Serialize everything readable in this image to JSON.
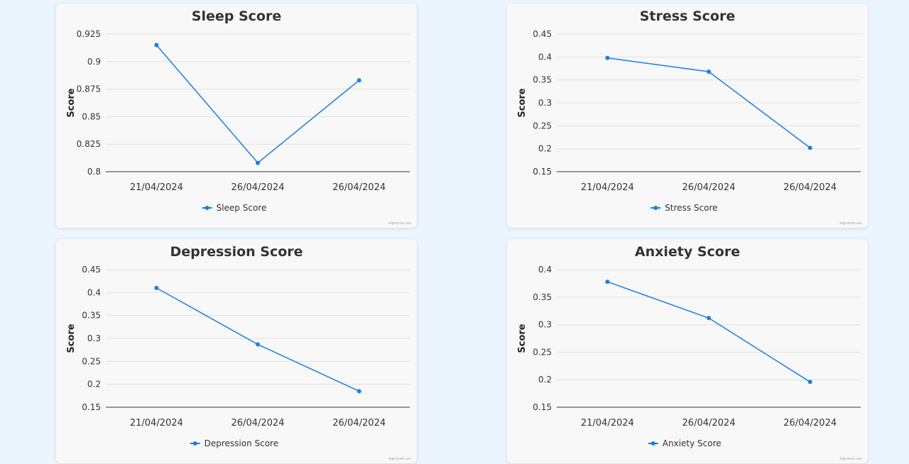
{
  "credit": "Highcharts.com",
  "chart_data": [
    {
      "type": "line",
      "title": "Sleep Score",
      "ylabel": "Score",
      "categories": [
        "21/04/2024",
        "26/04/2024",
        "26/04/2024"
      ],
      "series": [
        {
          "name": "Sleep Score",
          "values": [
            0.915,
            0.808,
            0.883
          ]
        }
      ],
      "yticks": [
        "0.8",
        "0.825",
        "0.85",
        "0.875",
        "0.9",
        "0.925"
      ],
      "ylim": [
        0.8,
        0.925
      ],
      "legend": "bottom-center",
      "color": "#1a7fe3",
      "grid": true
    },
    {
      "type": "line",
      "title": "Stress Score",
      "ylabel": "Score",
      "categories": [
        "21/04/2024",
        "26/04/2024",
        "26/04/2024"
      ],
      "series": [
        {
          "name": "Stress Score",
          "values": [
            0.398,
            0.368,
            0.202
          ]
        }
      ],
      "yticks": [
        "0.15",
        "0.2",
        "0.25",
        "0.3",
        "0.35",
        "0.4",
        "0.45"
      ],
      "ylim": [
        0.15,
        0.45
      ],
      "legend": "bottom-center",
      "color": "#1a7fe3",
      "grid": true
    },
    {
      "type": "line",
      "title": "Depression Score",
      "ylabel": "Score",
      "categories": [
        "21/04/2024",
        "26/04/2024",
        "26/04/2024"
      ],
      "series": [
        {
          "name": "Depression Score",
          "values": [
            0.41,
            0.287,
            0.185
          ]
        }
      ],
      "yticks": [
        "0.15",
        "0.2",
        "0.25",
        "0.3",
        "0.35",
        "0.4",
        "0.45"
      ],
      "ylim": [
        0.15,
        0.45
      ],
      "legend": "bottom-center",
      "color": "#1a7fe3",
      "grid": true
    },
    {
      "type": "line",
      "title": "Anxiety Score",
      "ylabel": "Score",
      "categories": [
        "21/04/2024",
        "26/04/2024",
        "26/04/2024"
      ],
      "series": [
        {
          "name": "Anxiety Score",
          "values": [
            0.378,
            0.312,
            0.196
          ]
        }
      ],
      "yticks": [
        "0.15",
        "0.2",
        "0.25",
        "0.3",
        "0.35",
        "0.4"
      ],
      "ylim": [
        0.15,
        0.4
      ],
      "legend": "bottom-center",
      "color": "#1a7fe3",
      "grid": true
    }
  ]
}
